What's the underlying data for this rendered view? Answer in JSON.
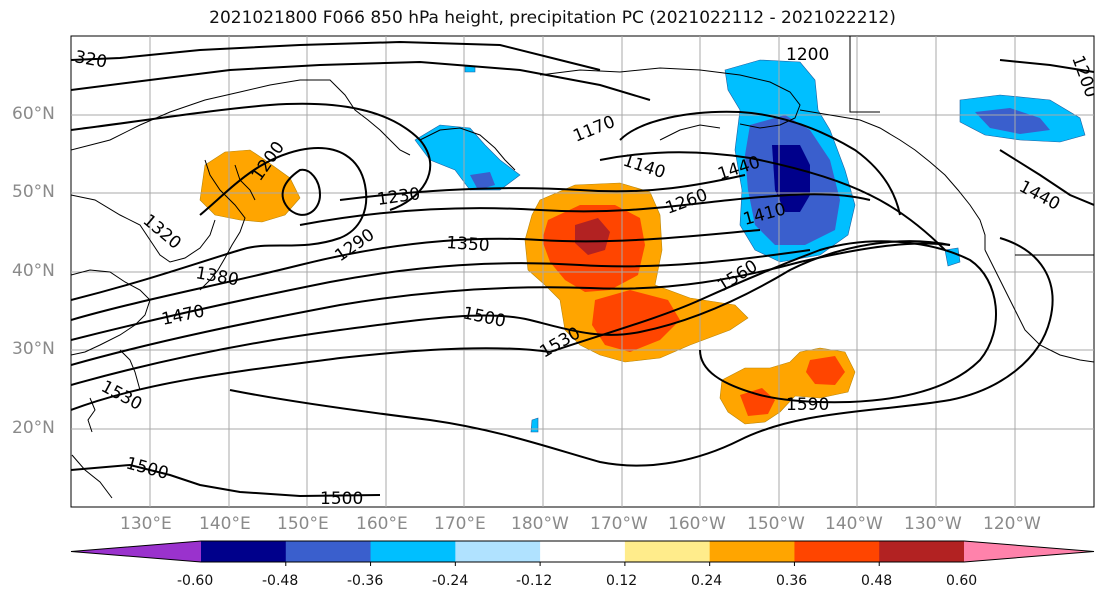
{
  "title": "2021021800 F066 850 hPa height, precipitation PC (2021022112 - 2021022212)",
  "lat_labels": [
    "60°N",
    "50°N",
    "40°N",
    "30°N",
    "20°N"
  ],
  "lon_labels": [
    "130°E",
    "140°E",
    "150°E",
    "160°E",
    "170°E",
    "180°W",
    "170°W",
    "160°W",
    "150°W",
    "140°W",
    "130°W",
    "120°W"
  ],
  "contour_labels": [
    "320",
    "1200",
    "1170",
    "1140",
    "1200",
    "1230",
    "1260",
    "1290",
    "1320",
    "1350",
    "1380",
    "1410",
    "1440",
    "1470",
    "1500",
    "1500",
    "1500",
    "1530",
    "1530",
    "1560",
    "1590",
    "1440",
    "1200"
  ],
  "colorbar": {
    "ticks": [
      "-0.60",
      "-0.48",
      "-0.36",
      "-0.24",
      "-0.12",
      "0.12",
      "0.24",
      "0.36",
      "0.48",
      "0.60"
    ],
    "colors": [
      "#9a32cd",
      "#00008b",
      "#3a5fcd",
      "#00bfff",
      "#b0e2ff",
      "#ffffff",
      "#ffec8b",
      "#ffa500",
      "#ff4500",
      "#b22222",
      "#ff82ab"
    ]
  }
}
